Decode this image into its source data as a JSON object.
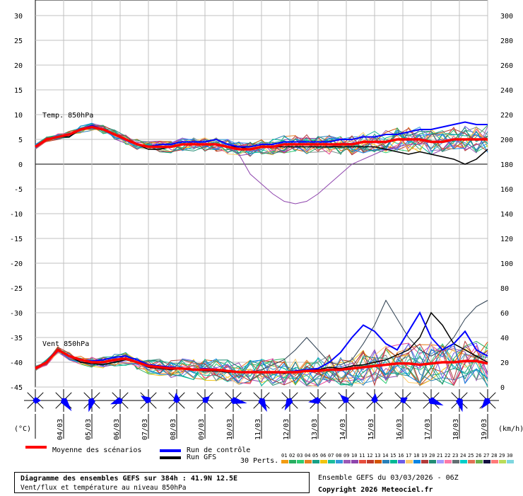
{
  "chart_data": {
    "type": "line",
    "title": "Diagramme des ensembles GEFS sur 384h : 41.9N 12.5E",
    "subtitle": "Vent/flux et température au niveau 850hPa",
    "left_axis": {
      "label": "(°C)",
      "range": [
        -45,
        30
      ],
      "ticks": [
        30,
        25,
        20,
        15,
        10,
        5,
        0,
        -5,
        -10,
        -15,
        -20,
        -25,
        -30,
        -35,
        -40,
        -45
      ]
    },
    "right_axis": {
      "label": "(km/h)",
      "range": [
        0,
        300
      ],
      "ticks": [
        300,
        280,
        260,
        240,
        220,
        200,
        180,
        160,
        140,
        120,
        100,
        80,
        60,
        40,
        20,
        0
      ]
    },
    "x_dates": [
      "04/03",
      "05/03",
      "06/03",
      "07/03",
      "08/03",
      "09/03",
      "10/03",
      "11/03",
      "12/03",
      "13/03",
      "14/03",
      "15/03",
      "16/03",
      "17/03",
      "18/03",
      "19/03"
    ],
    "grid": true,
    "temperature": {
      "label": "Temp. 850hPa",
      "mean": [
        3.5,
        5,
        5.5,
        6,
        7,
        7.5,
        7,
        6,
        5,
        4,
        3.5,
        3.5,
        3.5,
        4,
        4,
        4,
        4,
        3.5,
        3,
        3,
        3.5,
        3.5,
        4,
        4,
        4,
        4,
        4,
        4,
        4,
        4.5,
        4.5,
        4.5,
        5,
        5,
        5,
        4.5,
        4.5,
        5,
        5,
        5,
        5
      ],
      "gfs": [
        3.5,
        5,
        5.5,
        5.5,
        7,
        7.5,
        7,
        6,
        5,
        4,
        3,
        3,
        3.5,
        4,
        4,
        4,
        4,
        3.5,
        3.5,
        3,
        3.5,
        3.5,
        3.5,
        3.5,
        3.5,
        3.5,
        3.5,
        3.5,
        3.5,
        3.5,
        3.5,
        3,
        2.5,
        2,
        2.5,
        2,
        1.5,
        1,
        0,
        1,
        3
      ],
      "control": [
        3.5,
        5,
        5.5,
        6,
        7,
        7.8,
        7,
        6,
        5,
        4,
        3.5,
        4,
        4,
        4.5,
        4.5,
        4.5,
        5,
        4,
        3.5,
        3.5,
        4,
        4,
        4.5,
        4.5,
        4.5,
        4.5,
        4.5,
        5,
        5,
        5.5,
        5.5,
        6,
        6,
        6.5,
        7,
        7,
        7.5,
        8,
        8.5,
        8,
        8
      ],
      "outlier": [
        3.5,
        5,
        5.5,
        6,
        7,
        7.5,
        7,
        6,
        5,
        4,
        3.5,
        3.5,
        3.5,
        4,
        4,
        4,
        4,
        3.5,
        2,
        -2,
        -4,
        -6,
        -7.5,
        -8,
        -7.5,
        -6,
        -4,
        -2,
        0,
        1,
        2,
        3,
        3.5,
        4,
        4,
        4.5,
        5,
        5,
        5,
        5,
        5
      ]
    },
    "wind": {
      "label": "Vent 850hPa",
      "mean": [
        15,
        20,
        30,
        25,
        22,
        20,
        20,
        22,
        23,
        20,
        17,
        16,
        15,
        15,
        14,
        14,
        14,
        13,
        12,
        12,
        12,
        12,
        12,
        12,
        13,
        13,
        14,
        14,
        15,
        16,
        17,
        18,
        19,
        19,
        18,
        19,
        20,
        20,
        21,
        21,
        19
      ],
      "gfs": [
        15,
        20,
        30,
        25,
        20,
        19,
        18,
        20,
        22,
        20,
        16,
        15,
        14,
        15,
        14,
        13,
        13,
        12,
        12,
        12,
        12,
        12,
        11,
        12,
        14,
        14,
        16,
        15,
        17,
        18,
        20,
        22,
        26,
        30,
        40,
        60,
        50,
        35,
        30,
        25,
        20
      ],
      "control": [
        15,
        20,
        30,
        25,
        22,
        21,
        22,
        24,
        25,
        22,
        18,
        17,
        16,
        15,
        14,
        15,
        14,
        13,
        12,
        12,
        12,
        12,
        12,
        13,
        14,
        15,
        20,
        28,
        40,
        50,
        45,
        35,
        30,
        45,
        60,
        40,
        30,
        35,
        45,
        30,
        25
      ],
      "peak": [
        15,
        20,
        30,
        25,
        22,
        20,
        20,
        22,
        23,
        20,
        17,
        16,
        15,
        15,
        14,
        14,
        14,
        13,
        12,
        12,
        14,
        18,
        22,
        30,
        40,
        30,
        20,
        18,
        22,
        35,
        50,
        70,
        55,
        40,
        30,
        25,
        30,
        40,
        55,
        65,
        70
      ]
    },
    "legend": {
      "mean": "Moyenne des scénarios",
      "control": "Run de contrôle",
      "gfs": "Run GFS",
      "perts": "30 Perts.",
      "pert_numbers": [
        "01",
        "02",
        "03",
        "04",
        "05",
        "06",
        "07",
        "08",
        "09",
        "10",
        "11",
        "12",
        "13",
        "14",
        "15",
        "16",
        "17",
        "18",
        "19",
        "20",
        "21",
        "22",
        "23",
        "24",
        "25",
        "26",
        "27",
        "28",
        "29",
        "30"
      ]
    },
    "colors": {
      "mean": "#ff0000",
      "control": "#0000ff",
      "gfs": "#000000",
      "grid": "#c0c0c0",
      "windrose": "#0000ff"
    }
  },
  "footer": {
    "title": "Diagramme des ensembles GEFS sur 384h : 41.9N 12.5E",
    "subtitle": "Vent/flux et température au niveau 850hPa",
    "run": "Ensemble GEFS du 03/03/2026 - 06Z",
    "copyright": "Copyright 2026 Meteociel.fr"
  }
}
